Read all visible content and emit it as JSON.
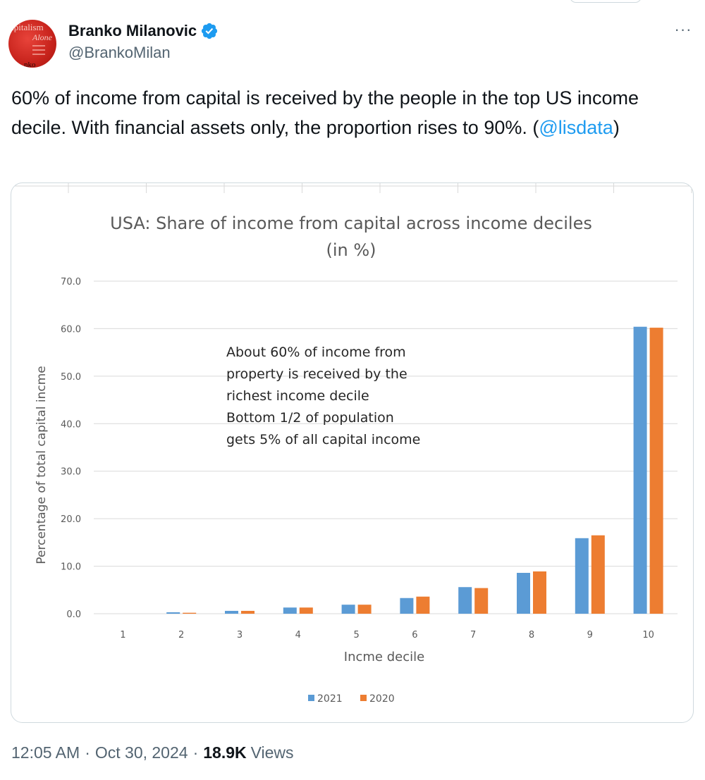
{
  "author": {
    "name": "Branko Milanovic",
    "handle": "@BrankoMilan",
    "avatar_text": [
      "apitalism",
      "Alone",
      "nko"
    ]
  },
  "tweet": {
    "text_before": "60% of income from capital is received by the people in the top US income decile. With financial assets only, the proportion rises to 90%. (",
    "mention": "@lisdata",
    "text_after": ")"
  },
  "meta": {
    "time": "12:05 AM",
    "date": "Oct 30, 2024",
    "separator": "·",
    "views_count": "18.9K",
    "views_label": "Views"
  },
  "more_label": "···",
  "colors": {
    "verified": "#1d9bf0",
    "link": "#1d9bf0",
    "series_2021": "#5b9bd5",
    "series_2020": "#ed7d31"
  },
  "chart_data": {
    "type": "bar",
    "title": [
      "USA: Share of income from capital across income deciles",
      "(in %)"
    ],
    "xlabel": "Incme decile",
    "ylabel": "Percentage of total capital incme",
    "categories": [
      "1",
      "2",
      "3",
      "4",
      "5",
      "6",
      "7",
      "8",
      "9",
      "10"
    ],
    "y_tick_labels": [
      "0.0",
      "10.0",
      "20.0",
      "30.0",
      "40.0",
      "50.0",
      "60.0",
      "70.0"
    ],
    "ylim": [
      0,
      70
    ],
    "grid": true,
    "legend": "bottom",
    "annotation": [
      "About 60% of income from",
      "property is received by the",
      "richest income decile",
      "Bottom 1/2 of population",
      "gets 5% of all capital income"
    ],
    "series": [
      {
        "name": "2021",
        "color": "#5b9bd5",
        "values": [
          0.0,
          0.3,
          0.6,
          1.3,
          1.9,
          3.3,
          5.6,
          8.6,
          15.9,
          60.4
        ]
      },
      {
        "name": "2020",
        "color": "#ed7d31",
        "values": [
          0.0,
          0.2,
          0.6,
          1.3,
          1.9,
          3.6,
          5.4,
          8.9,
          16.5,
          60.2
        ]
      }
    ]
  }
}
